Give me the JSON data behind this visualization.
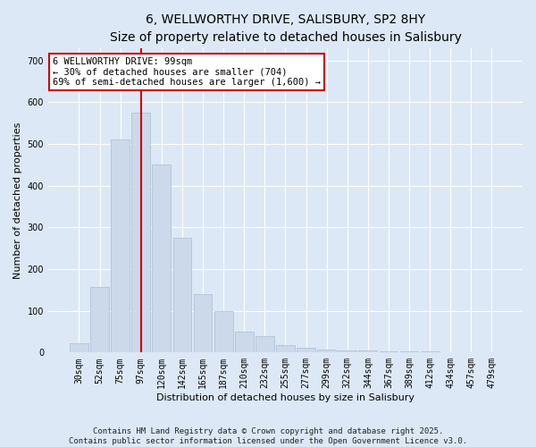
{
  "title_line1": "6, WELLWORTHY DRIVE, SALISBURY, SP2 8HY",
  "title_line2": "Size of property relative to detached houses in Salisbury",
  "xlabel": "Distribution of detached houses by size in Salisbury",
  "ylabel": "Number of detached properties",
  "bar_color": "#ccd9ea",
  "bar_edge_color": "#aabdd4",
  "vline_color": "#cc0000",
  "vline_x_index": 3,
  "categories": [
    "30sqm",
    "52sqm",
    "75sqm",
    "97sqm",
    "120sqm",
    "142sqm",
    "165sqm",
    "187sqm",
    "210sqm",
    "232sqm",
    "255sqm",
    "277sqm",
    "299sqm",
    "322sqm",
    "344sqm",
    "367sqm",
    "389sqm",
    "412sqm",
    "434sqm",
    "457sqm",
    "479sqm"
  ],
  "bar_heights": [
    22,
    158,
    510,
    575,
    450,
    275,
    140,
    100,
    50,
    40,
    18,
    12,
    8,
    4,
    4,
    2,
    2,
    2,
    1,
    1,
    1
  ],
  "ylim": [
    0,
    730
  ],
  "yticks": [
    0,
    100,
    200,
    300,
    400,
    500,
    600,
    700
  ],
  "annotation_text": "6 WELLWORTHY DRIVE: 99sqm\n← 30% of detached houses are smaller (704)\n69% of semi-detached houses are larger (1,600) →",
  "annotation_box_facecolor": "#ffffff",
  "annotation_box_edgecolor": "#cc0000",
  "footer_text": "Contains HM Land Registry data © Crown copyright and database right 2025.\nContains public sector information licensed under the Open Government Licence v3.0.",
  "background_color": "#dce8f5",
  "plot_background": "#dce8f5",
  "grid_color": "#ffffff",
  "title_fontsize": 10,
  "subtitle_fontsize": 9,
  "axis_label_fontsize": 8,
  "tick_fontsize": 7,
  "annotation_fontsize": 7.5,
  "footer_fontsize": 6.5
}
